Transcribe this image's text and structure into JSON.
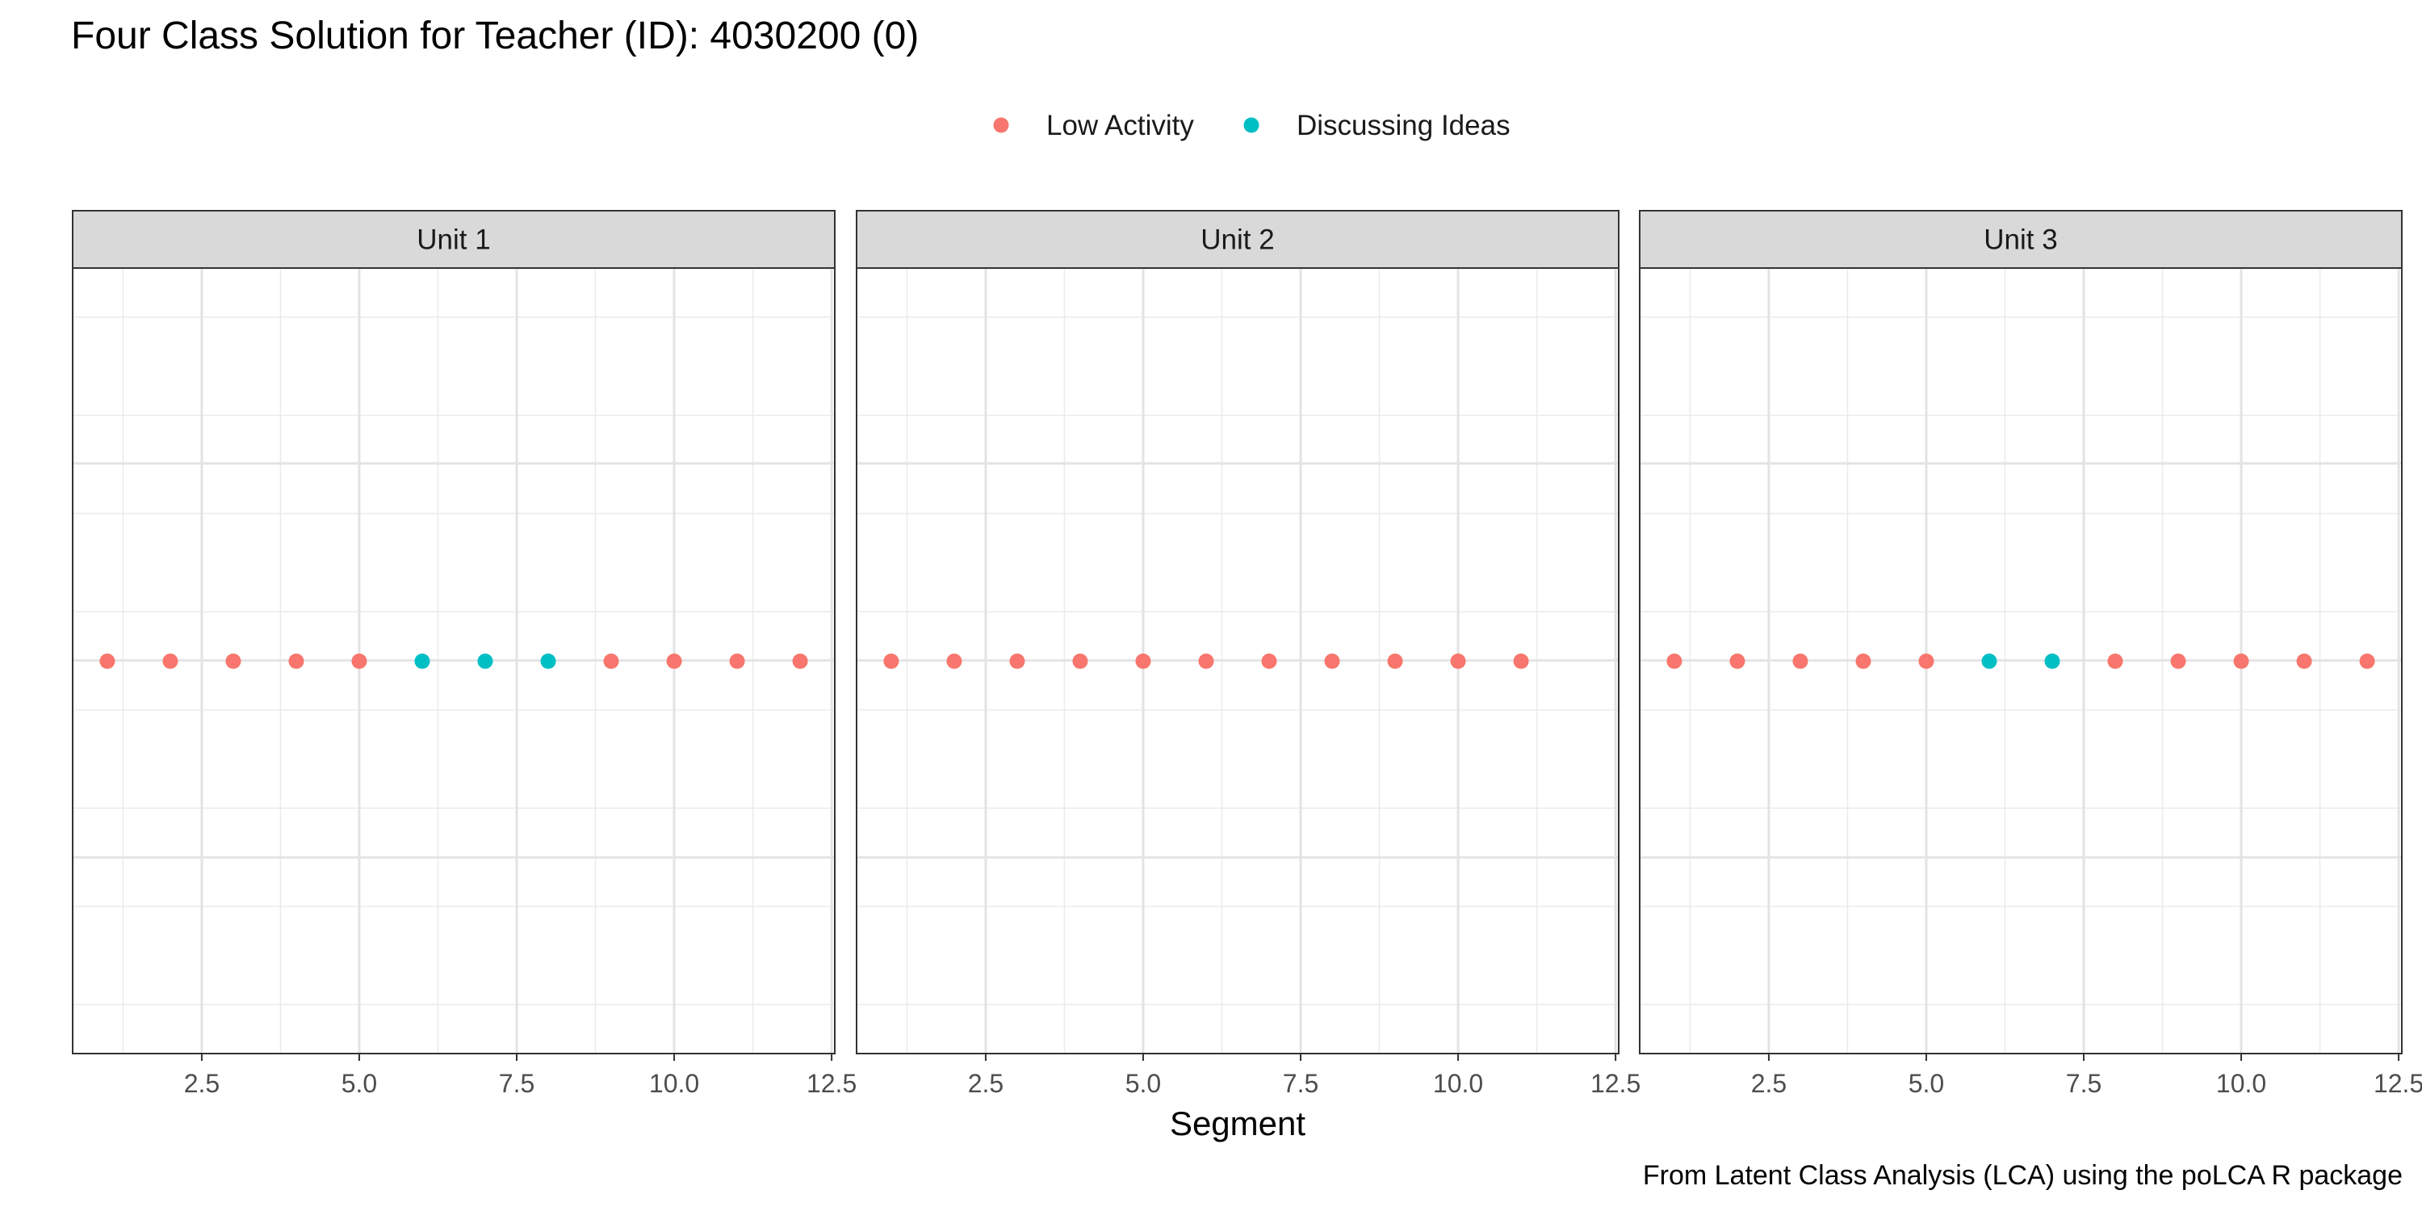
{
  "chart_data": {
    "type": "scatter",
    "title": "Four Class Solution for Teacher (ID): 4030200 (0)",
    "xlabel": "Segment",
    "ylabel": "",
    "caption": "From Latent Class Analysis (LCA) using the poLCA R package",
    "xlim": [
      0.45,
      12.55
    ],
    "x_ticks": [
      2.5,
      5.0,
      7.5,
      10.0,
      12.5
    ],
    "x_tick_labels": [
      "2.5",
      "5.0",
      "7.5",
      "10.0",
      "12.5"
    ],
    "grid": true,
    "legend_position": "top",
    "legend": [
      {
        "name": "Low Activity",
        "color": "#F8766D"
      },
      {
        "name": "Discussing Ideas",
        "color": "#00BFC4"
      }
    ],
    "facets": [
      {
        "label": "Unit 1",
        "points": [
          {
            "x": 1,
            "class": "Low Activity"
          },
          {
            "x": 2,
            "class": "Low Activity"
          },
          {
            "x": 3,
            "class": "Low Activity"
          },
          {
            "x": 4,
            "class": "Low Activity"
          },
          {
            "x": 5,
            "class": "Low Activity"
          },
          {
            "x": 6,
            "class": "Discussing Ideas"
          },
          {
            "x": 7,
            "class": "Discussing Ideas"
          },
          {
            "x": 8,
            "class": "Discussing Ideas"
          },
          {
            "x": 9,
            "class": "Low Activity"
          },
          {
            "x": 10,
            "class": "Low Activity"
          },
          {
            "x": 11,
            "class": "Low Activity"
          },
          {
            "x": 12,
            "class": "Low Activity"
          }
        ]
      },
      {
        "label": "Unit 2",
        "points": [
          {
            "x": 1,
            "class": "Low Activity"
          },
          {
            "x": 2,
            "class": "Low Activity"
          },
          {
            "x": 3,
            "class": "Low Activity"
          },
          {
            "x": 4,
            "class": "Low Activity"
          },
          {
            "x": 5,
            "class": "Low Activity"
          },
          {
            "x": 6,
            "class": "Low Activity"
          },
          {
            "x": 7,
            "class": "Low Activity"
          },
          {
            "x": 8,
            "class": "Low Activity"
          },
          {
            "x": 9,
            "class": "Low Activity"
          },
          {
            "x": 10,
            "class": "Low Activity"
          },
          {
            "x": 11,
            "class": "Low Activity"
          }
        ]
      },
      {
        "label": "Unit 3",
        "points": [
          {
            "x": 1,
            "class": "Low Activity"
          },
          {
            "x": 2,
            "class": "Low Activity"
          },
          {
            "x": 3,
            "class": "Low Activity"
          },
          {
            "x": 4,
            "class": "Low Activity"
          },
          {
            "x": 5,
            "class": "Low Activity"
          },
          {
            "x": 6,
            "class": "Discussing Ideas"
          },
          {
            "x": 7,
            "class": "Discussing Ideas"
          },
          {
            "x": 8,
            "class": "Low Activity"
          },
          {
            "x": 9,
            "class": "Low Activity"
          },
          {
            "x": 10,
            "class": "Low Activity"
          },
          {
            "x": 11,
            "class": "Low Activity"
          },
          {
            "x": 12,
            "class": "Low Activity"
          }
        ]
      }
    ]
  }
}
